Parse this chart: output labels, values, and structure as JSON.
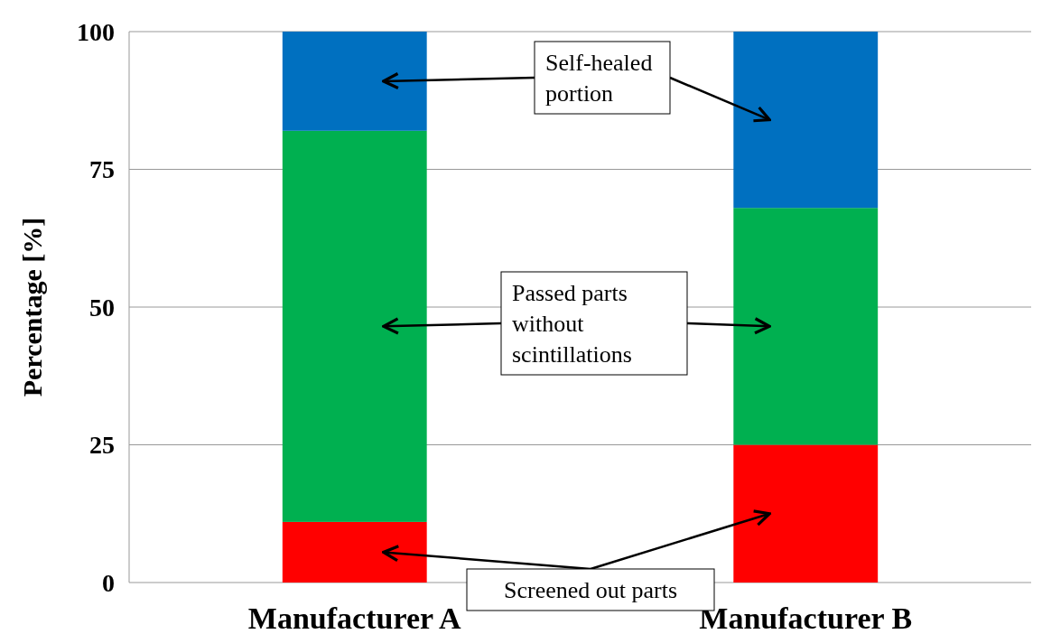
{
  "chart_data": {
    "type": "bar",
    "stacked": true,
    "ylabel": "Percentage [%]",
    "categories": [
      "Manufacturer A",
      "Manufacturer B"
    ],
    "series": [
      {
        "color": "#ff0000",
        "values": [
          11,
          25
        ]
      },
      {
        "color": "#00b050",
        "values": [
          71,
          43
        ]
      },
      {
        "color": "#0070c0",
        "values": [
          18,
          32
        ]
      }
    ],
    "ylim": [
      0,
      100
    ],
    "yticks": [
      0,
      25,
      50,
      75,
      100
    ],
    "grid": "y",
    "annotations": [
      "Self-healed portion",
      "Passed parts without scintillations",
      "Screened out parts"
    ]
  }
}
